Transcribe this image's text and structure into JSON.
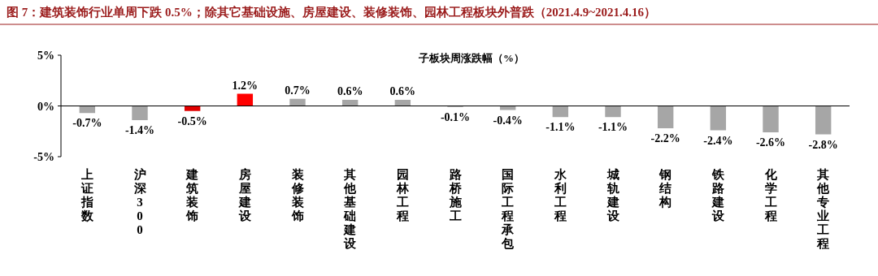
{
  "chart_data": {
    "type": "bar",
    "title": "图 7：建筑装饰行业单周下跌 0.5%；除其它基础设施、房屋建设、装修装饰、园林工程板块外普跌（2021.4.9~2021.4.16）",
    "subtitle": "子板块周涨跌幅（%）",
    "categories": [
      "上证指数",
      "沪深300",
      "建筑装饰",
      "房屋建设",
      "装修装饰",
      "其他基础建设",
      "园林工程",
      "路桥施工",
      "国际工程承包",
      "水利工程",
      "城轨建设",
      "钢结构",
      "铁路建设",
      "化学工程",
      "其他专业工程"
    ],
    "values": [
      -0.7,
      -1.4,
      -0.5,
      1.2,
      0.7,
      0.6,
      0.6,
      -0.1,
      -0.4,
      -1.1,
      -1.1,
      -2.2,
      -2.4,
      -2.6,
      -2.8
    ],
    "colors": [
      "#a6a6a6",
      "#a6a6a6",
      "#e00000",
      "#ff0000",
      "#a6a6a6",
      "#a6a6a6",
      "#a6a6a6",
      "#a6a6a6",
      "#a6a6a6",
      "#a6a6a6",
      "#a6a6a6",
      "#a6a6a6",
      "#a6a6a6",
      "#a6a6a6",
      "#a6a6a6"
    ],
    "value_labels": [
      "-0.7%",
      "-1.4%",
      "-0.5%",
      "1.2%",
      "0.7%",
      "0.6%",
      "0.6%",
      "-0.1%",
      "-0.4%",
      "-1.1%",
      "-1.1%",
      "-2.2%",
      "-2.4%",
      "-2.6%",
      "-2.8%"
    ],
    "ylim": [
      -5,
      5
    ],
    "yticks": [
      {
        "value": -5,
        "label": "-5%"
      },
      {
        "value": 0,
        "label": "0%"
      },
      {
        "value": 5,
        "label": "5%"
      }
    ]
  }
}
